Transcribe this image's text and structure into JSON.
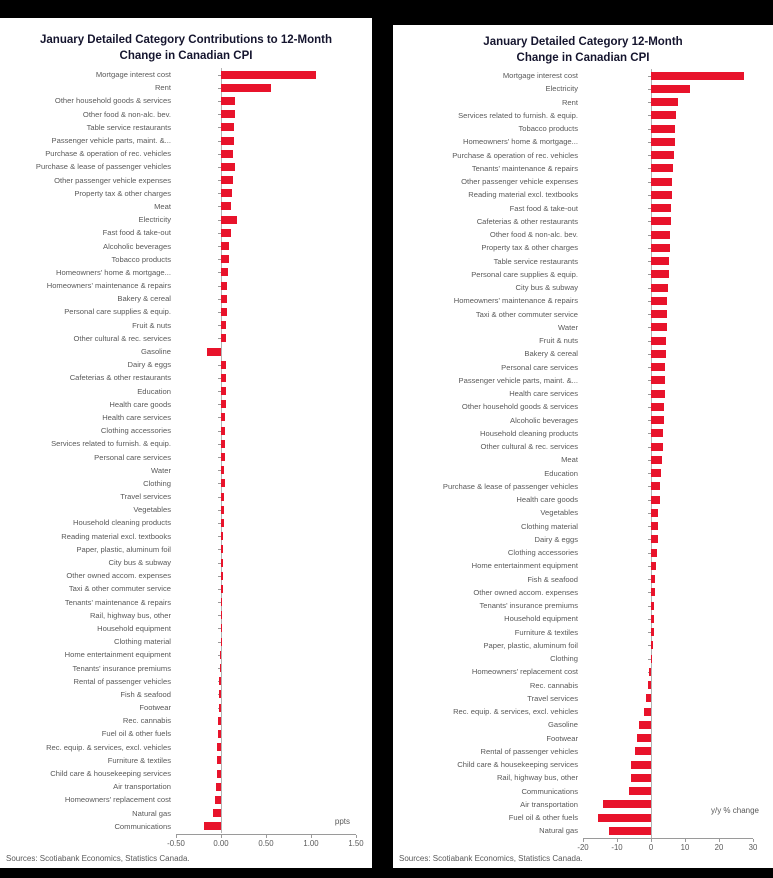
{
  "page": {
    "background_color": "#000000"
  },
  "chart_data": [
    {
      "type": "bar",
      "orientation": "horizontal",
      "title": "January Detailed Category Contributions to 12-Month Change in Canadian CPI",
      "title_lines": [
        "January Detailed Category Contributions to 12-Month",
        "Change in Canadian CPI"
      ],
      "unit_label": "ppts",
      "sources": "Sources: Scotiabank Economics, Statistics Canada.",
      "bar_color": "#e8132b",
      "grid": false,
      "xlim": [
        -0.5,
        1.5
      ],
      "xticks": [
        -0.5,
        0,
        0.5,
        1,
        1.5
      ],
      "xtick_labels": [
        "-0.50",
        "0.00",
        "0.50",
        "1.00",
        "1.50"
      ],
      "categories": [
        "Mortgage interest cost",
        "Rent",
        "Other household goods & services",
        "Other food & non-alc. bev.",
        "Table service restaurants",
        "Passenger vehicle parts, maint. &...",
        "Purchase & operation of rec. vehicles",
        "Purchase & lease of passenger vehicles",
        "Other passenger vehicle expenses",
        "Property tax & other charges",
        "Meat",
        "Electricity",
        "Fast food & take-out",
        "Alcoholic beverages",
        "Tobacco products",
        "Homeowners' home & mortgage...",
        "Homeowners' maintenance & repairs",
        "Bakery & cereal",
        "Personal care supplies & equip.",
        "Fruit & nuts",
        "Other cultural & rec. services",
        "Gasoline",
        "Dairy & eggs",
        "Cafeterias & other restaurants",
        "Education",
        "Health care goods",
        "Health care services",
        "Clothing accessories",
        "Services related to furnish. & equip.",
        "Personal care services",
        "Water",
        "Clothing",
        "Travel services",
        "Vegetables",
        "Household cleaning products",
        "Reading material excl. textbooks",
        "Paper, plastic, aluminum foil",
        "City bus & subway",
        "Other owned accom. expenses",
        "Taxi & other commuter service",
        "Tenants' maintenance & repairs",
        "Rail, highway bus, other",
        "Household equipment",
        "Clothing material",
        "Home entertainment equipment",
        "Tenants' insurance premiums",
        "Rental of passenger vehicles",
        "Fish & seafood",
        "Footwear",
        "Rec. cannabis",
        "Fuel oil & other fuels",
        "Rec. equip. & services, excl. vehicles",
        "Furniture & textiles",
        "Child care & housekeeping services",
        "Air transportation",
        "Homeowners' replacement cost",
        "Natural gas",
        "Communications"
      ],
      "values": [
        1.06,
        0.55,
        0.16,
        0.15,
        0.14,
        0.14,
        0.13,
        0.15,
        0.13,
        0.12,
        0.11,
        0.18,
        0.11,
        0.09,
        0.09,
        0.08,
        0.07,
        0.07,
        0.07,
        0.06,
        0.06,
        -0.16,
        0.06,
        0.05,
        0.05,
        0.05,
        0.04,
        0.04,
        0.04,
        0.04,
        0.03,
        0.04,
        0.03,
        0.03,
        0.03,
        0.02,
        0.02,
        0.02,
        0.02,
        0.02,
        0.01,
        0.01,
        0.01,
        0.01,
        -0.01,
        -0.01,
        -0.02,
        -0.02,
        -0.02,
        -0.03,
        -0.03,
        -0.04,
        -0.04,
        -0.05,
        -0.06,
        -0.07,
        -0.09,
        -0.19
      ]
    },
    {
      "type": "bar",
      "orientation": "horizontal",
      "title": "January Detailed Category 12-Month Change in Canadian CPI",
      "title_lines": [
        "January Detailed Category 12-Month",
        "Change in Canadian CPI"
      ],
      "unit_label": "y/y % change",
      "sources": "Sources: Scotiabank Economics, Statistics Canada.",
      "bar_color": "#e8132b",
      "grid": false,
      "xlim": [
        -20,
        30
      ],
      "xticks": [
        -20,
        -10,
        0,
        10,
        20,
        30
      ],
      "xtick_labels": [
        "-20",
        "-10",
        "0",
        "10",
        "20",
        "30"
      ],
      "categories": [
        "Mortgage interest cost",
        "Electricity",
        "Rent",
        "Services related to furnish. & equip.",
        "Tobacco products",
        "Homeowners' home & mortgage...",
        "Purchase & operation of rec. vehicles",
        "Tenants' maintenance & repairs",
        "Other passenger vehicle expenses",
        "Reading material excl. textbooks",
        "Fast food & take-out",
        "Cafeterias & other restaurants",
        "Other food & non-alc. bev.",
        "Property tax & other charges",
        "Table service restaurants",
        "Personal care supplies & equip.",
        "City bus & subway",
        "Homeowners' maintenance & repairs",
        "Taxi & other commuter service",
        "Water",
        "Fruit & nuts",
        "Bakery & cereal",
        "Personal care services",
        "Passenger vehicle parts, maint. &...",
        "Health care services",
        "Other household goods & services",
        "Alcoholic beverages",
        "Household cleaning products",
        "Other cultural & rec. services",
        "Meat",
        "Education",
        "Purchase & lease of passenger vehicles",
        "Health care goods",
        "Vegetables",
        "Clothing material",
        "Dairy & eggs",
        "Clothing accessories",
        "Home entertainment equipment",
        "Fish & seafood",
        "Other owned accom. expenses",
        "Tenants' insurance premiums",
        "Household equipment",
        "Furniture & textiles",
        "Paper, plastic, aluminum foil",
        "Clothing",
        "Homeowners' replacement cost",
        "Rec. cannabis",
        "Travel services",
        "Rec. equip. & services, excl. vehicles",
        "Gasoline",
        "Footwear",
        "Rental of passenger vehicles",
        "Child care & housekeeping services",
        "Rail, highway bus, other",
        "Communications",
        "Air transportation",
        "Fuel oil & other fuels",
        "Natural gas"
      ],
      "values": [
        27.4,
        11.5,
        8.0,
        7.4,
        7.2,
        7.0,
        6.8,
        6.6,
        6.3,
        6.2,
        6.0,
        5.8,
        5.6,
        5.5,
        5.3,
        5.2,
        5.0,
        4.8,
        4.7,
        4.6,
        4.5,
        4.3,
        4.2,
        4.1,
        4.0,
        3.9,
        3.7,
        3.6,
        3.5,
        3.3,
        3.0,
        2.7,
        2.5,
        2.2,
        2.1,
        2.0,
        1.7,
        1.5,
        1.3,
        1.2,
        1.0,
        0.9,
        0.8,
        0.6,
        0.4,
        -0.6,
        -1.0,
        -1.4,
        -2.0,
        -3.6,
        -4.0,
        -4.6,
        -5.8,
        -6.0,
        -6.4,
        -14.0,
        -15.5,
        -12.5
      ]
    }
  ]
}
